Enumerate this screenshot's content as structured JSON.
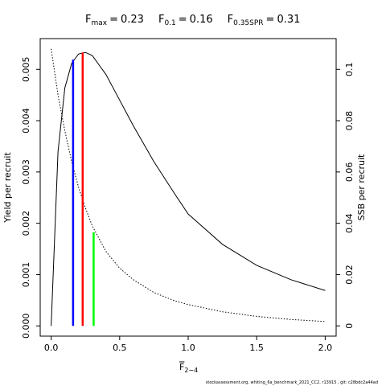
{
  "chart_data": {
    "type": "line",
    "title": [
      {
        "main": "F",
        "sub": "max",
        "sep": "=",
        "value": 0.23
      },
      {
        "main": "F",
        "sub": "0.1",
        "sep": "=",
        "value": 0.16
      },
      {
        "main": "F",
        "sub": "0.35SPR",
        "sep": "=",
        "value": 0.31
      }
    ],
    "xlabel": {
      "main": "F",
      "sub": "2−4"
    },
    "ylabel": "Yield per recruit",
    "y2label": "SSB per recruit",
    "footer": "stockassessment.org, whiting_6a_benchmark_2021_CC2, r13915 , git: c28bdc2a44ad",
    "x": [
      0,
      0.05,
      0.1,
      0.15,
      0.2,
      0.25,
      0.3,
      0.4,
      0.5,
      0.6,
      0.75,
      0.9,
      1.0,
      1.25,
      1.5,
      1.75,
      2.0
    ],
    "series": [
      {
        "name": "Yield per recruit",
        "color": "#000000",
        "dash": "none",
        "axis": "y",
        "values": [
          0,
          0.0034,
          0.00464,
          0.00512,
          0.0053,
          0.00533,
          0.00527,
          0.0049,
          0.0044,
          0.0039,
          0.0032,
          0.00258,
          0.00218,
          0.00159,
          0.00118,
          0.0009,
          0.00069
        ]
      },
      {
        "name": "SSB per recruit",
        "color": "#000000",
        "dash": "1.5 2",
        "axis": "y2",
        "values": [
          0.108,
          0.09,
          0.076,
          0.064,
          0.054,
          0.046,
          0.039,
          0.029,
          0.0225,
          0.018,
          0.013,
          0.0098,
          0.0083,
          0.0055,
          0.0037,
          0.0025,
          0.0017
        ]
      }
    ],
    "reference_lines": [
      {
        "x": 0.23,
        "top": 0.00533,
        "axis": "y",
        "color": "#ff0000"
      },
      {
        "x": 0.16,
        "top": 0.00519,
        "axis": "y",
        "color": "#0000ff"
      },
      {
        "x": 0.31,
        "top": 0.0365,
        "axis": "y2",
        "color": "#00ff00"
      }
    ],
    "xlim": [
      -0.08,
      2.08
    ],
    "xticks": [
      {
        "value": 0,
        "label": "0.0"
      },
      0.5,
      {
        "value": 1,
        "label": "1.0"
      },
      1.5,
      {
        "value": 2,
        "label": "2.0"
      }
    ],
    "ylim": [
      -0.0002,
      0.0056
    ],
    "yticks": [
      {
        "value": 0,
        "label": "0.000"
      },
      {
        "value": 0.001,
        "label": "0.001"
      },
      {
        "value": 0.002,
        "label": "0.002"
      },
      {
        "value": 0.003,
        "label": "0.003"
      },
      {
        "value": 0.004,
        "label": "0.004"
      },
      {
        "value": 0.005,
        "label": "0.005"
      }
    ],
    "y2lim": [
      -0.004,
      0.112
    ],
    "y2ticks": [
      0,
      0.02,
      0.04,
      0.06,
      0.08,
      0.1
    ]
  }
}
